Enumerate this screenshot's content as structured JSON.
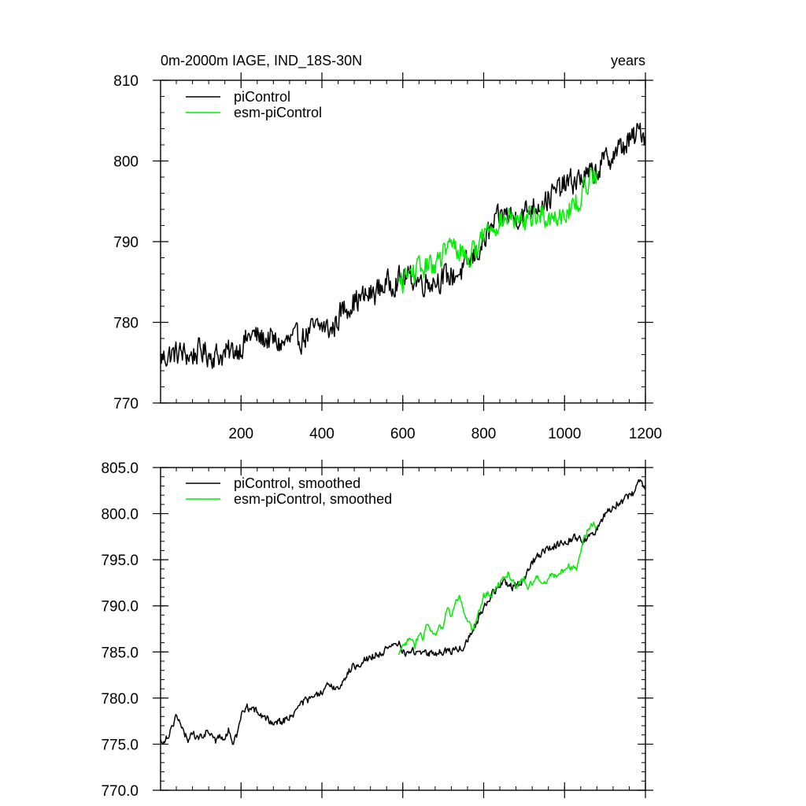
{
  "chart_data": [
    {
      "type": "line",
      "title_left": "0m-2000m IAGE, IND_18S-30N",
      "title_right": "years",
      "xlim": [
        1,
        1200
      ],
      "ylim": [
        770,
        810
      ],
      "yticks": [
        770,
        780,
        790,
        800,
        810
      ],
      "ytick_labels": [
        "770",
        "780",
        "790",
        "800",
        "810"
      ],
      "xticks": [
        200,
        400,
        600,
        800,
        1000,
        1200
      ],
      "xtick_labels": [
        "200",
        "400",
        "600",
        "800",
        "1000",
        "1200"
      ],
      "series": [
        {
          "name": "piControl",
          "color": "#000000",
          "x": [
            1,
            25,
            50,
            75,
            100,
            125,
            150,
            175,
            200,
            225,
            250,
            275,
            300,
            325,
            350,
            375,
            400,
            425,
            450,
            475,
            500,
            525,
            550,
            575,
            600,
            625,
            650,
            675,
            700,
            725,
            750,
            775,
            800,
            825,
            850,
            875,
            900,
            925,
            950,
            975,
            1000,
            1025,
            1050,
            1075,
            1100,
            1125,
            1150,
            1175,
            1190,
            1200
          ],
          "y": [
            775.5,
            776.0,
            776.2,
            775.8,
            776.5,
            776.0,
            775.9,
            776.3,
            777.0,
            778.5,
            778.0,
            777.8,
            777.2,
            777.8,
            778.0,
            779.0,
            779.5,
            779.0,
            781.5,
            782.5,
            783.0,
            783.5,
            784.5,
            785.0,
            785.5,
            785.5,
            785.0,
            785.2,
            785.5,
            785.8,
            786.5,
            788.0,
            790.0,
            792.0,
            793.5,
            793.0,
            793.5,
            794.5,
            795.0,
            796.0,
            797.0,
            797.5,
            798.0,
            798.5,
            800.0,
            801.0,
            802.0,
            803.0,
            804.0,
            803.0
          ],
          "noise": 2.2
        },
        {
          "name": "esm-piControl",
          "color": "#00ee00",
          "x": [
            590,
            615,
            640,
            665,
            690,
            715,
            740,
            765,
            790,
            815,
            840,
            865,
            890,
            915,
            940,
            965,
            990,
            1015,
            1040,
            1065,
            1080
          ],
          "y": [
            784.5,
            786.0,
            786.5,
            787.0,
            787.5,
            789.5,
            789.0,
            788.0,
            790.0,
            792.0,
            792.5,
            793.0,
            792.0,
            793.0,
            793.5,
            793.0,
            793.5,
            794.0,
            795.5,
            798.0,
            799.0
          ],
          "noise": 2.0
        }
      ]
    },
    {
      "type": "line",
      "xlim": [
        1,
        1200
      ],
      "ylim": [
        770,
        805
      ],
      "yticks": [
        770,
        775,
        780,
        785,
        790,
        795,
        800,
        805
      ],
      "ytick_labels": [
        "770.0",
        "775.0",
        "780.0",
        "785.0",
        "790.0",
        "795.0",
        "800.0",
        "805.0"
      ],
      "xticks": [
        200,
        400,
        600,
        800,
        1000,
        1200
      ],
      "series": [
        {
          "name": "piControl, smoothed",
          "color": "#000000",
          "x": [
            1,
            10,
            20,
            30,
            40,
            50,
            60,
            70,
            80,
            90,
            100,
            120,
            140,
            150,
            160,
            170,
            180,
            190,
            200,
            210,
            225,
            250,
            275,
            300,
            325,
            350,
            375,
            400,
            420,
            440,
            460,
            480,
            500,
            525,
            550,
            575,
            590,
            600,
            625,
            650,
            675,
            700,
            725,
            750,
            775,
            800,
            825,
            850,
            875,
            900,
            925,
            950,
            975,
            1000,
            1025,
            1050,
            1075,
            1100,
            1125,
            1150,
            1175,
            1190,
            1200
          ],
          "y": [
            775.3,
            775.5,
            776.0,
            777.0,
            778.2,
            777.0,
            776.0,
            775.5,
            776.5,
            775.5,
            775.8,
            776.5,
            775.2,
            776.0,
            775.5,
            776.5,
            775.0,
            776.0,
            778.0,
            779.0,
            779.0,
            778.0,
            777.5,
            777.5,
            778.0,
            779.5,
            780.0,
            780.5,
            781.5,
            781.0,
            782.5,
            783.5,
            784.0,
            784.5,
            785.0,
            785.5,
            786.0,
            785.0,
            785.0,
            785.0,
            784.8,
            785.0,
            785.2,
            785.5,
            787.5,
            790.0,
            791.5,
            792.5,
            792.0,
            793.0,
            795.0,
            796.0,
            796.5,
            797.0,
            797.5,
            797.0,
            798.0,
            800.0,
            801.0,
            801.5,
            802.5,
            804.0,
            802.8
          ],
          "noise": 0.6
        },
        {
          "name": "esm-piControl, smoothed",
          "color": "#00ee00",
          "x": [
            590,
            600,
            610,
            620,
            630,
            640,
            650,
            660,
            670,
            680,
            690,
            700,
            710,
            720,
            730,
            740,
            750,
            760,
            770,
            780,
            790,
            800,
            810,
            820,
            830,
            840,
            850,
            860,
            870,
            880,
            890,
            900,
            910,
            920,
            930,
            940,
            950,
            960,
            970,
            980,
            990,
            1000,
            1010,
            1020,
            1030,
            1040,
            1050,
            1060,
            1070,
            1080
          ],
          "y": [
            784.5,
            785.5,
            786.0,
            786.5,
            785.5,
            787.0,
            786.5,
            788.0,
            787.0,
            786.5,
            787.5,
            788.0,
            790.0,
            789.0,
            790.5,
            791.0,
            789.5,
            788.5,
            787.5,
            788.0,
            789.5,
            791.0,
            791.5,
            791.0,
            792.0,
            792.5,
            793.0,
            793.5,
            793.0,
            792.0,
            792.5,
            793.0,
            792.0,
            792.5,
            793.0,
            793.0,
            792.5,
            793.0,
            793.5,
            793.0,
            793.5,
            794.0,
            794.5,
            794.0,
            794.0,
            796.0,
            797.5,
            798.5,
            799.0,
            798.5
          ],
          "noise": 0.5
        }
      ]
    }
  ]
}
